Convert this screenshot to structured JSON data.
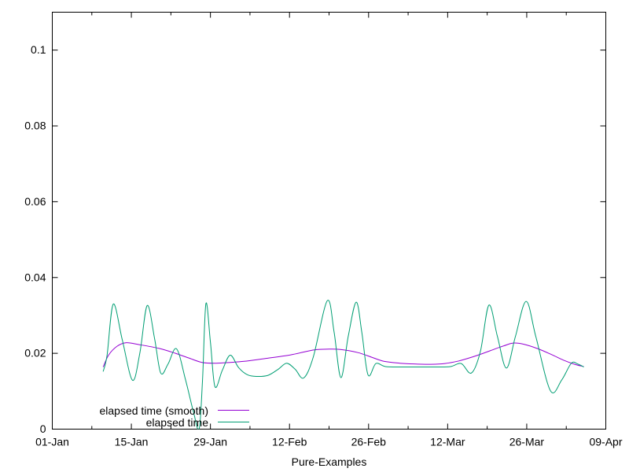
{
  "chart_data": {
    "type": "line",
    "title": "",
    "xlabel": "Pure-Examples",
    "ylabel": "",
    "x_unit": "days since 01-Jan (01-Jan = 0)",
    "xlim": [
      0,
      98
    ],
    "ylim": [
      0,
      0.11
    ],
    "grid": false,
    "legend_position": "inside-bottom-left",
    "background": "#ffffff",
    "axis_color": "#000000",
    "text_color": "#000000",
    "y_ticks": [
      {
        "value": 0,
        "label": "0"
      },
      {
        "value": 0.02,
        "label": "0.02"
      },
      {
        "value": 0.04,
        "label": "0.04"
      },
      {
        "value": 0.06,
        "label": "0.06"
      },
      {
        "value": 0.08,
        "label": "0.08"
      },
      {
        "value": 0.1,
        "label": "0.1"
      }
    ],
    "x_major_ticks": [
      {
        "day": 0,
        "label": "01-Jan"
      },
      {
        "day": 14,
        "label": "15-Jan"
      },
      {
        "day": 28,
        "label": "29-Jan"
      },
      {
        "day": 42,
        "label": "12-Feb"
      },
      {
        "day": 56,
        "label": "26-Feb"
      },
      {
        "day": 70,
        "label": "12-Mar"
      },
      {
        "day": 84,
        "label": "26-Mar"
      },
      {
        "day": 98,
        "label": "09-Apr"
      }
    ],
    "x_minor_tick_days": [
      7,
      21,
      35,
      49,
      63,
      77,
      91
    ],
    "series": [
      {
        "name": "elapsed time (smooth)",
        "color": "#9400d3",
        "points": [
          [
            9.0,
            0.0164
          ],
          [
            10.0,
            0.0196
          ],
          [
            11.5,
            0.0219
          ],
          [
            13.1,
            0.0228
          ],
          [
            15.4,
            0.0223
          ],
          [
            18.9,
            0.0213
          ],
          [
            21.8,
            0.02
          ],
          [
            24.1,
            0.0188
          ],
          [
            26.5,
            0.0176
          ],
          [
            29.0,
            0.0174
          ],
          [
            31.5,
            0.0176
          ],
          [
            34.0,
            0.0179
          ],
          [
            37.6,
            0.0186
          ],
          [
            42.2,
            0.0196
          ],
          [
            46.4,
            0.0209
          ],
          [
            49.0,
            0.0211
          ],
          [
            51.0,
            0.021
          ],
          [
            54.1,
            0.0202
          ],
          [
            56.5,
            0.019
          ],
          [
            58.7,
            0.0179
          ],
          [
            61.5,
            0.0174
          ],
          [
            64.0,
            0.0172
          ],
          [
            67.0,
            0.0171
          ],
          [
            69.5,
            0.0173
          ],
          [
            72.0,
            0.018
          ],
          [
            74.3,
            0.019
          ],
          [
            76.3,
            0.02
          ],
          [
            78.3,
            0.0211
          ],
          [
            80.0,
            0.022
          ],
          [
            81.6,
            0.0227
          ],
          [
            83.5,
            0.0224
          ],
          [
            86.0,
            0.0212
          ],
          [
            88.5,
            0.0196
          ],
          [
            90.5,
            0.0182
          ],
          [
            92.5,
            0.0171
          ],
          [
            94.1,
            0.0165
          ]
        ]
      },
      {
        "name": "elapsed time",
        "color": "#009e73",
        "points": [
          [
            9.0,
            0.0152
          ],
          [
            9.7,
            0.0195
          ],
          [
            10.8,
            0.033
          ],
          [
            12.4,
            0.0235
          ],
          [
            14.2,
            0.0129
          ],
          [
            15.5,
            0.02
          ],
          [
            16.8,
            0.0326
          ],
          [
            18.1,
            0.024
          ],
          [
            19.2,
            0.0148
          ],
          [
            20.5,
            0.0172
          ],
          [
            22.0,
            0.0212
          ],
          [
            23.6,
            0.013
          ],
          [
            25.0,
            0.0045
          ],
          [
            26.0,
            0.0001
          ],
          [
            26.6,
            0.013
          ],
          [
            27.2,
            0.0331
          ],
          [
            28.0,
            0.023
          ],
          [
            28.8,
            0.0112
          ],
          [
            30.1,
            0.0155
          ],
          [
            31.5,
            0.0195
          ],
          [
            33.0,
            0.0162
          ],
          [
            34.6,
            0.0143
          ],
          [
            36.2,
            0.0139
          ],
          [
            38.2,
            0.0142
          ],
          [
            40.0,
            0.0158
          ],
          [
            41.5,
            0.0174
          ],
          [
            43.0,
            0.0158
          ],
          [
            44.5,
            0.0135
          ],
          [
            46.2,
            0.019
          ],
          [
            48.7,
            0.0339
          ],
          [
            49.9,
            0.0255
          ],
          [
            51.1,
            0.0136
          ],
          [
            52.4,
            0.0245
          ],
          [
            53.8,
            0.0335
          ],
          [
            54.8,
            0.0255
          ],
          [
            55.9,
            0.0143
          ],
          [
            57.3,
            0.0173
          ],
          [
            59.0,
            0.0165
          ],
          [
            62.0,
            0.0164
          ],
          [
            65.0,
            0.0164
          ],
          [
            68.0,
            0.0164
          ],
          [
            70.5,
            0.0165
          ],
          [
            72.4,
            0.0173
          ],
          [
            74.2,
            0.0148
          ],
          [
            75.8,
            0.0205
          ],
          [
            77.3,
            0.0327
          ],
          [
            78.8,
            0.0245
          ],
          [
            80.4,
            0.0161
          ],
          [
            82.0,
            0.0245
          ],
          [
            83.9,
            0.0337
          ],
          [
            85.6,
            0.0245
          ],
          [
            88.2,
            0.0101
          ],
          [
            90.2,
            0.013
          ],
          [
            91.9,
            0.0174
          ],
          [
            93.0,
            0.0172
          ],
          [
            94.1,
            0.0164
          ]
        ]
      }
    ]
  }
}
